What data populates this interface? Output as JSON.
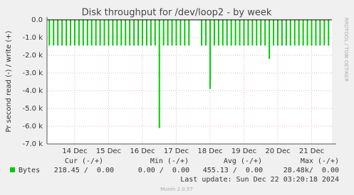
{
  "chart_data": {
    "type": "spike",
    "title": "Disk throughput for /dev/loop2 - by week",
    "ylabel": "Pr second read (-) / write (+)",
    "side_text": "RRDTOOL / TOBI OETIKER",
    "xlim": [
      13.18,
      21.6
    ],
    "xticks": [
      {
        "value": 14,
        "label": "14 Dec"
      },
      {
        "value": 15,
        "label": "15 Dec"
      },
      {
        "value": 16,
        "label": "16 Dec"
      },
      {
        "value": 17,
        "label": "17 Dec"
      },
      {
        "value": 18,
        "label": "18 Dec"
      },
      {
        "value": 19,
        "label": "19 Dec"
      },
      {
        "value": 20,
        "label": "20 Dec"
      },
      {
        "value": 21,
        "label": "21 Dec"
      }
    ],
    "ylim": [
      -7000,
      0
    ],
    "yticks": [
      {
        "value": 0,
        "label": "0.0"
      },
      {
        "value": -1000,
        "label": "-1.0 k"
      },
      {
        "value": -2000,
        "label": "-2.0 k"
      },
      {
        "value": -3000,
        "label": "-3.0 k"
      },
      {
        "value": -4000,
        "label": "-4.0 k"
      },
      {
        "value": -5000,
        "label": "-5.0 k"
      },
      {
        "value": -6000,
        "label": "-6.0 k"
      },
      {
        "value": -7000,
        "label": "-7.0 k"
      }
    ],
    "grid": true,
    "x": [
      13.25,
      13.375,
      13.5,
      13.625,
      13.75,
      13.875,
      14,
      14.125,
      14.25,
      14.375,
      14.5,
      14.625,
      14.75,
      14.875,
      15,
      15.125,
      15.25,
      15.375,
      15.5,
      15.625,
      15.75,
      15.875,
      16,
      16.125,
      16.25,
      16.375,
      16.5,
      16.625,
      16.75,
      16.875,
      17,
      17.125,
      17.25,
      17.375,
      17.5,
      17.625,
      17.75,
      17.875,
      18,
      18.125,
      18.25,
      18.375,
      18.5,
      18.625,
      18.75,
      18.875,
      19,
      19.125,
      19.25,
      19.375,
      19.5,
      19.625,
      19.75,
      19.875,
      20,
      20.125,
      20.25,
      20.375,
      20.5,
      20.625,
      20.75,
      20.875,
      21,
      21.125,
      21.25,
      21.375,
      21.5
    ],
    "series": [
      {
        "name": "Bytes",
        "color": "#00cc00",
        "values": [
          -1450,
          -1450,
          -1450,
          -1450,
          -1450,
          -1450,
          -1450,
          -1450,
          -1450,
          -1450,
          -1450,
          -1450,
          -1450,
          -1450,
          -1450,
          -1450,
          -1450,
          -1450,
          -1450,
          -1450,
          -1450,
          -1450,
          -1450,
          -1450,
          -1450,
          -1450,
          -6100,
          -1450,
          -1450,
          -1450,
          -1450,
          -1450,
          -1450,
          -1450,
          null,
          null,
          -1450,
          -1450,
          -3900,
          -1450,
          -1450,
          -1450,
          -1450,
          -1450,
          -1450,
          -1450,
          -1450,
          -1450,
          -1450,
          -1450,
          -1450,
          -1450,
          -2200,
          -1450,
          -1450,
          -1450,
          -1450,
          -1450,
          -1450,
          -1450,
          -1450,
          -1450,
          -1450,
          -1450,
          -1450,
          -1450,
          -1450
        ]
      }
    ],
    "legend_table": {
      "headers": [
        "Cur (-/+)",
        "Min (-/+)",
        "Avg (-/+)",
        "Max (-/+)"
      ],
      "stats": [
        "218.45 /  0.00",
        "0.00 /  0.00",
        "455.13 /  0.00",
        "28.48k/  0.00"
      ]
    },
    "last_update": "Last update: Sun Dec 22 03:20:18 2024",
    "footer": "Munin 2.0.57"
  }
}
